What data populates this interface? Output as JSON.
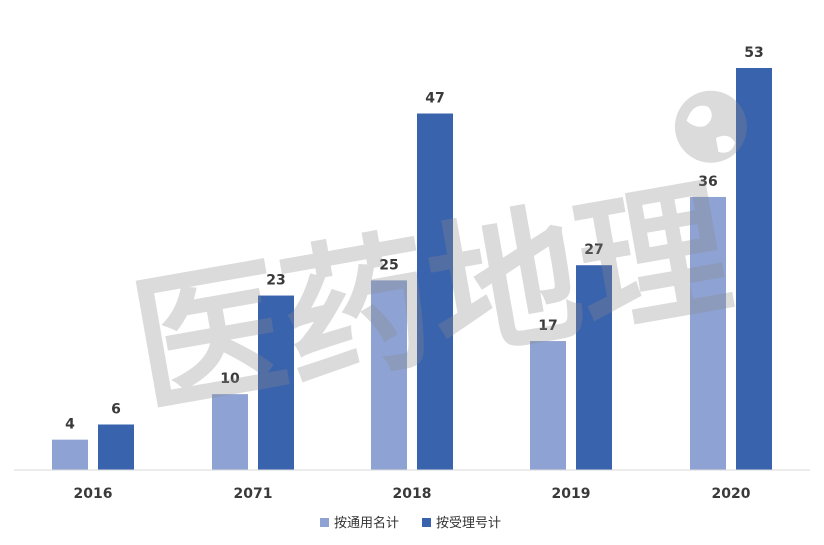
{
  "chart_data": {
    "type": "bar",
    "categories": [
      "2016",
      "2071",
      "2018",
      "2019",
      "2020"
    ],
    "series": [
      {
        "name": "按通用名计",
        "values": [
          4,
          10,
          25,
          17,
          36
        ],
        "color": "#8ea2d3"
      },
      {
        "name": "按受理号计",
        "values": [
          6,
          23,
          47,
          27,
          53
        ],
        "color": "#3a63ad"
      }
    ],
    "title": "",
    "xlabel": "",
    "ylabel": "",
    "ylim": [
      0,
      55
    ],
    "grid": false,
    "legend": "bottom",
    "data_labels": true
  },
  "watermark": {
    "text": "医药地理",
    "color": "#8a8a8a",
    "globe_icon": "globe-icon"
  },
  "colors": {
    "axis": "#d9d9d9",
    "label": "#3a3a3a"
  }
}
